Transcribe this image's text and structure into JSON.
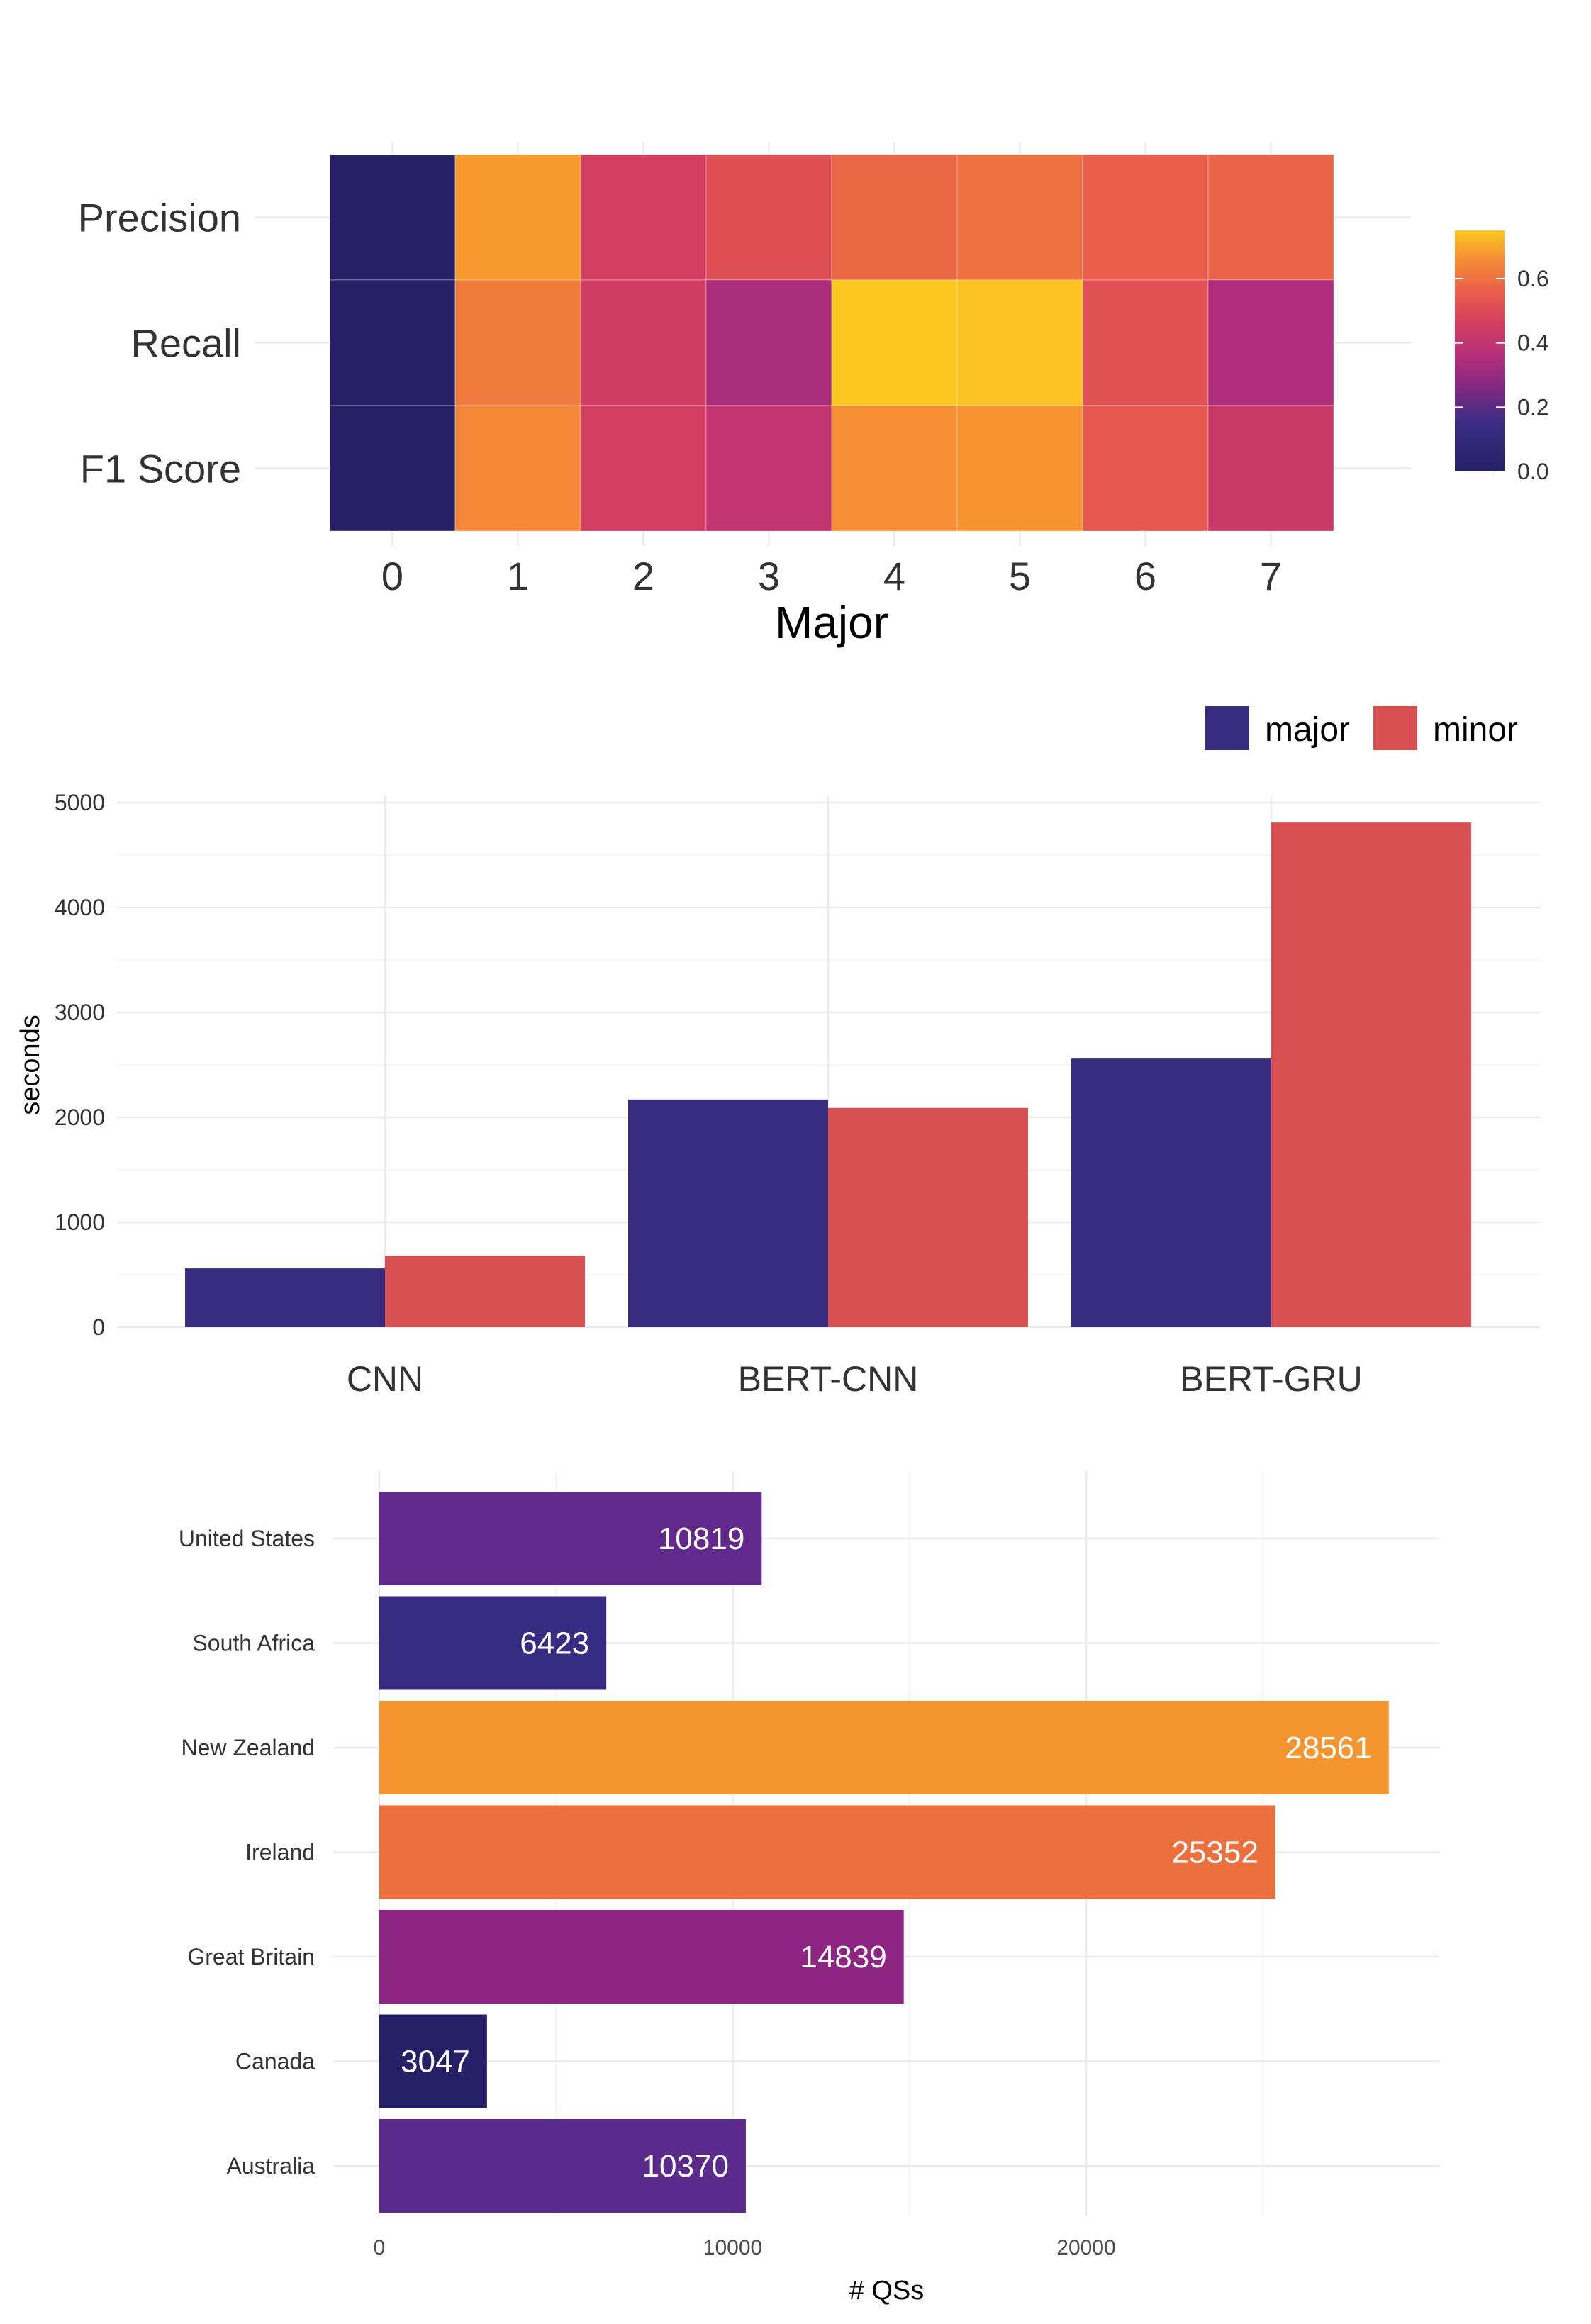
{
  "chart_data": [
    {
      "type": "heatmap",
      "xlabel": "Major",
      "ylabel": "",
      "x": [
        "0",
        "1",
        "2",
        "3",
        "4",
        "5",
        "6",
        "7"
      ],
      "y": [
        "Precision",
        "Recall",
        "F1 Score"
      ],
      "values": [
        [
          0.0,
          0.68,
          0.46,
          0.51,
          0.58,
          0.6,
          0.56,
          0.57
        ],
        [
          0.0,
          0.62,
          0.45,
          0.34,
          0.75,
          0.74,
          0.52,
          0.35
        ],
        [
          0.0,
          0.65,
          0.46,
          0.4,
          0.66,
          0.67,
          0.54,
          0.43
        ]
      ],
      "colorbar": {
        "range": [
          0,
          0.75
        ],
        "ticks": [
          0.0,
          0.2,
          0.4,
          0.6
        ],
        "tick_labels": [
          "0.0",
          "0.2",
          "0.4",
          "0.6"
        ]
      },
      "colors": [
        "#262066",
        "#3a2d84",
        "#8c2980",
        "#b52f7a",
        "#d44060",
        "#e85d4c",
        "#f58936",
        "#fbc821"
      ],
      "legend": "right",
      "grid": true
    },
    {
      "type": "bar",
      "categories": [
        "CNN",
        "BERT-CNN",
        "BERT-GRU"
      ],
      "series": [
        {
          "name": "major",
          "values": [
            560,
            2170,
            2560
          ],
          "color": "#382c80"
        },
        {
          "name": "minor",
          "values": [
            680,
            2090,
            4810
          ],
          "color": "#d95052"
        }
      ],
      "xlabel": "",
      "ylabel": "seconds",
      "ylim": [
        0,
        5000
      ],
      "y_ticks": [
        0,
        1000,
        2000,
        3000,
        4000,
        5000
      ],
      "legend": "top-right",
      "grid": true
    },
    {
      "type": "bar",
      "orientation": "horizontal",
      "categories": [
        "United States",
        "South Africa",
        "New Zealand",
        "Ireland",
        "Great Britain",
        "Canada",
        "Australia"
      ],
      "values": [
        10819,
        6423,
        28561,
        25352,
        14839,
        3047,
        10370
      ],
      "colors": [
        "#62298c",
        "#382b82",
        "#f5952f",
        "#eb703e",
        "#8f2582",
        "#262066",
        "#5a2a8c"
      ],
      "xlabel": "# QSs",
      "ylabel": "",
      "xlim": [
        0,
        30000
      ],
      "x_ticks": [
        0,
        10000,
        20000
      ],
      "data_labels": true,
      "grid": true
    }
  ]
}
